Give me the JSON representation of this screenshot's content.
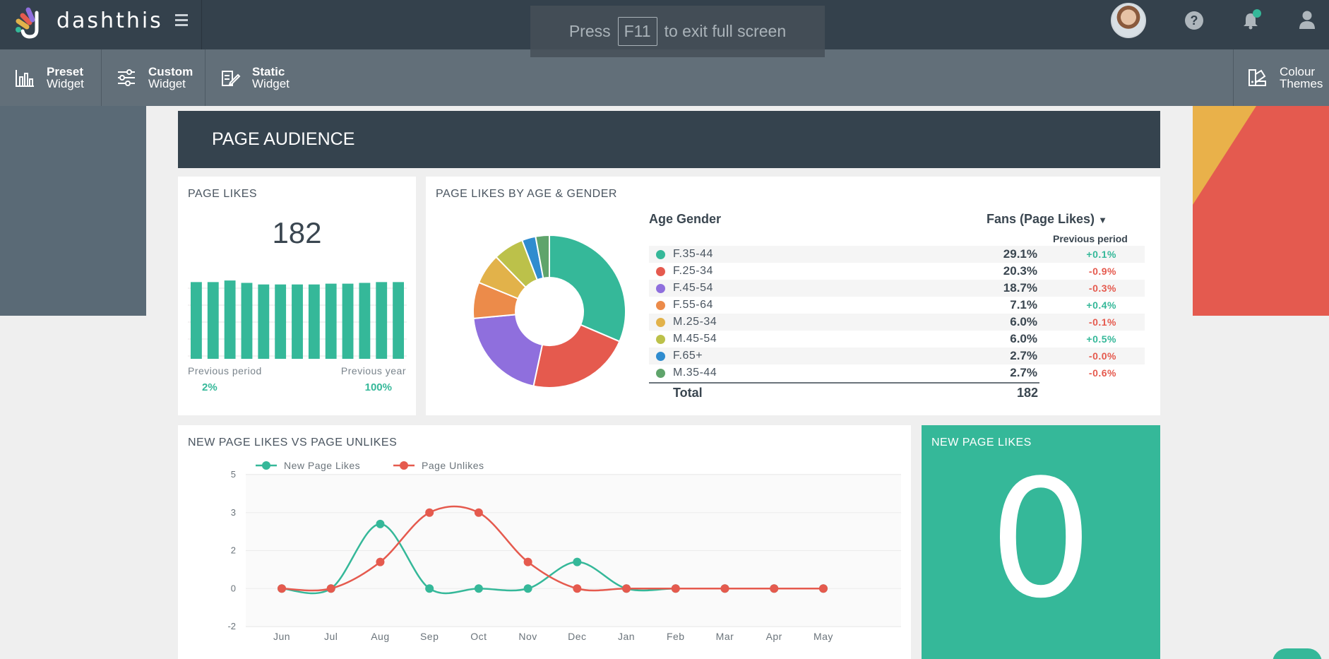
{
  "app": {
    "brand": "dashthis"
  },
  "fullscreen_hint": {
    "press": "Press",
    "key": "F11",
    "suffix": "to exit full screen"
  },
  "toolbar": {
    "preset": {
      "line1": "Preset",
      "line2": "Widget"
    },
    "custom": {
      "line1": "Custom",
      "line2": "Widget"
    },
    "static": {
      "line1": "Static",
      "line2": "Widget"
    },
    "themes": {
      "line1": "Colour",
      "line2": "Themes"
    }
  },
  "section": {
    "title": "PAGE AUDIENCE"
  },
  "page_likes": {
    "title": "PAGE LIKES",
    "value": "182",
    "previous_period_label": "Previous period",
    "previous_period_value": "2%",
    "previous_year_label": "Previous year",
    "previous_year_value": "100%",
    "bar_levels": [
      0.97,
      0.97,
      0.99,
      0.96,
      0.94,
      0.94,
      0.94,
      0.94,
      0.95,
      0.95,
      0.96,
      0.97,
      0.97
    ]
  },
  "age_gender": {
    "title": "PAGE LIKES BY AGE & GENDER",
    "col_age": "Age Gender",
    "col_fans": "Fans (Page Likes)",
    "col_prev": "Previous period",
    "rows": [
      {
        "name": "F.35-44",
        "pct": "29.1%",
        "prev": "+0.1%",
        "color": "#35b899",
        "value": 29.1
      },
      {
        "name": "F.25-34",
        "pct": "20.3%",
        "prev": "-0.9%",
        "color": "#e55a4e",
        "value": 20.3
      },
      {
        "name": "F.45-54",
        "pct": "18.7%",
        "prev": "-0.3%",
        "color": "#8f6fdd",
        "value": 18.7
      },
      {
        "name": "F.55-64",
        "pct": "7.1%",
        "prev": "+0.4%",
        "color": "#ec8b4a",
        "value": 7.1
      },
      {
        "name": "M.25-34",
        "pct": "6.0%",
        "prev": "-0.1%",
        "color": "#e2b24a",
        "value": 6.0
      },
      {
        "name": "M.45-54",
        "pct": "6.0%",
        "prev": "+0.5%",
        "color": "#bcc14a",
        "value": 6.0
      },
      {
        "name": "F.65+",
        "pct": "2.7%",
        "prev": "-0.0%",
        "color": "#2f8ccf",
        "value": 2.7
      },
      {
        "name": "M.35-44",
        "pct": "2.7%",
        "prev": "-0.6%",
        "color": "#5fa46b",
        "value": 2.7
      }
    ],
    "total_label": "Total",
    "total_value": "182"
  },
  "line_card": {
    "title": "NEW PAGE LIKES VS PAGE UNLIKES"
  },
  "chart_data": {
    "type": "line",
    "title": "NEW PAGE LIKES VS PAGE UNLIKES",
    "categories": [
      "Jun",
      "Jul",
      "Aug",
      "Sep",
      "Oct",
      "Nov",
      "Dec",
      "Jan",
      "Feb",
      "Mar",
      "Apr",
      "May"
    ],
    "y_ticks": [
      "5",
      "3",
      "2",
      "0",
      "-2"
    ],
    "series": [
      {
        "name": "New Page Likes",
        "color": "#35b899",
        "values": [
          0,
          0,
          2.7,
          0,
          0,
          0,
          1.4,
          0,
          0,
          0,
          0,
          0
        ]
      },
      {
        "name": "Page Unlikes",
        "color": "#e55a4e",
        "values": [
          0,
          0,
          1.4,
          3,
          3,
          1.4,
          0,
          0,
          0,
          0,
          0,
          0
        ]
      }
    ],
    "legend": "top-left"
  },
  "new_likes": {
    "title": "NEW PAGE LIKES",
    "value": "0"
  }
}
